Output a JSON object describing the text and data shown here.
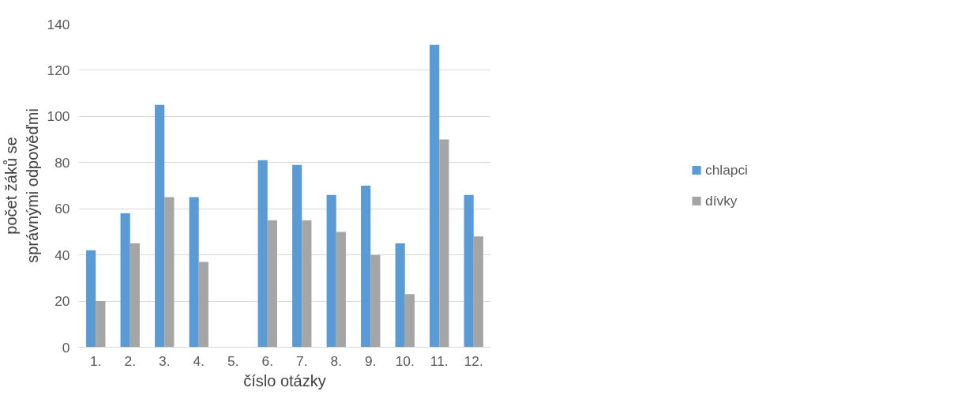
{
  "chart_data": {
    "type": "bar",
    "xlabel": "číslo otázky",
    "ylabel": "počet žáků se správnými odpověďmi",
    "categories": [
      "1.",
      "2.",
      "3.",
      "4.",
      "5.",
      "6.",
      "7.",
      "8.",
      "9.",
      "10.",
      "11.",
      "12."
    ],
    "series": [
      {
        "name": "chlapci",
        "color": "#5b9bd5",
        "values": [
          42,
          58,
          105,
          65,
          0,
          81,
          79,
          66,
          70,
          45,
          131,
          66
        ]
      },
      {
        "name": "dívky",
        "color": "#a5a5a5",
        "values": [
          20,
          45,
          65,
          37,
          0,
          55,
          55,
          50,
          40,
          23,
          90,
          48
        ]
      }
    ],
    "ylim": [
      0,
      140
    ],
    "yticks": [
      0,
      20,
      40,
      60,
      80,
      100,
      120,
      140
    ],
    "grid": "y",
    "legend": "right"
  }
}
